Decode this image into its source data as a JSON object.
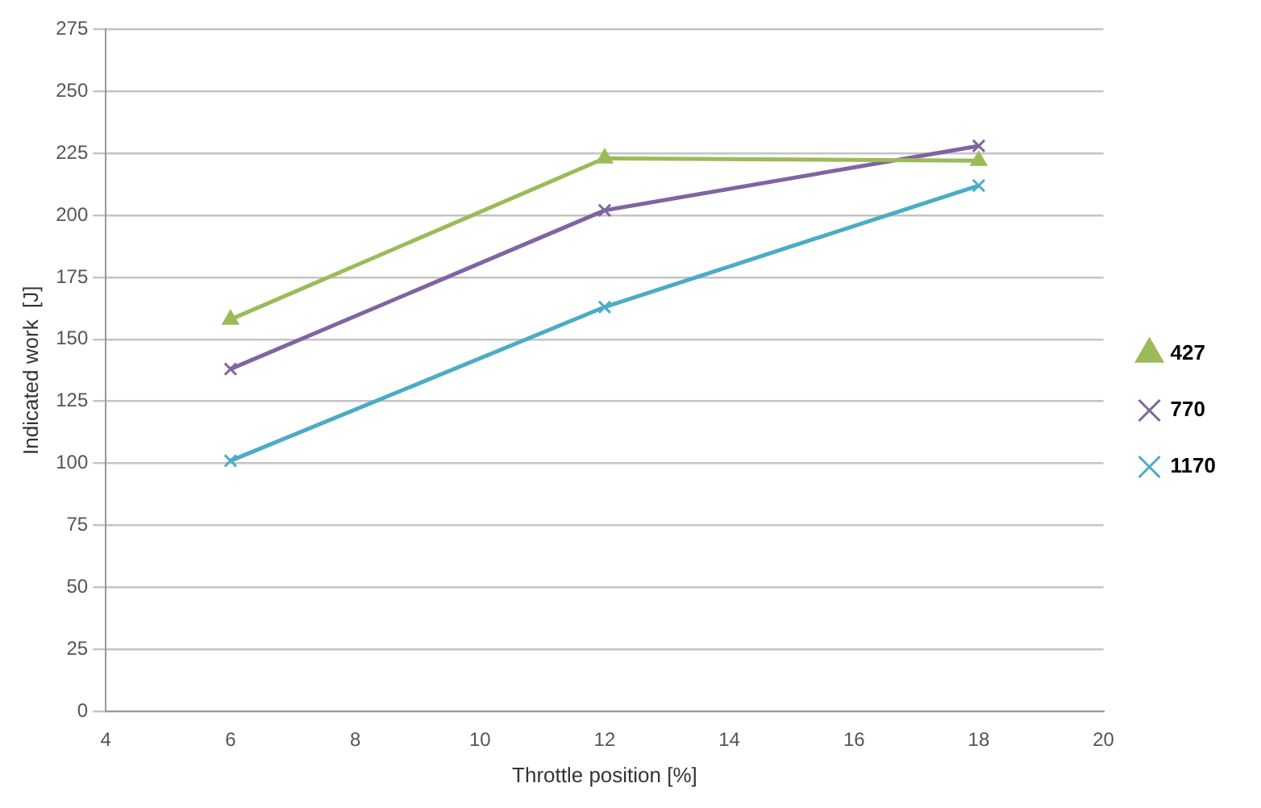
{
  "chart_data": {
    "type": "line",
    "xlabel": "Throttle position [%]",
    "ylabel": "Indicated work  [J]",
    "x": [
      6,
      12,
      18
    ],
    "series": [
      {
        "name": "427",
        "color": "#9bbb59",
        "marker": "triangle",
        "values": [
          158,
          223,
          222
        ]
      },
      {
        "name": "770",
        "color": "#8064a2",
        "marker": "cross",
        "values": [
          138,
          202,
          228
        ]
      },
      {
        "name": "1170",
        "color": "#4bacc6",
        "marker": "cross",
        "values": [
          101,
          163,
          212
        ]
      }
    ],
    "xlim": [
      4,
      20
    ],
    "xticks": [
      4,
      6,
      8,
      10,
      12,
      14,
      16,
      18,
      20
    ],
    "ylim": [
      0,
      275
    ],
    "yticks": [
      0,
      25,
      50,
      75,
      100,
      125,
      150,
      175,
      200,
      225,
      250,
      275
    ],
    "grid": "y",
    "legend": "right"
  }
}
